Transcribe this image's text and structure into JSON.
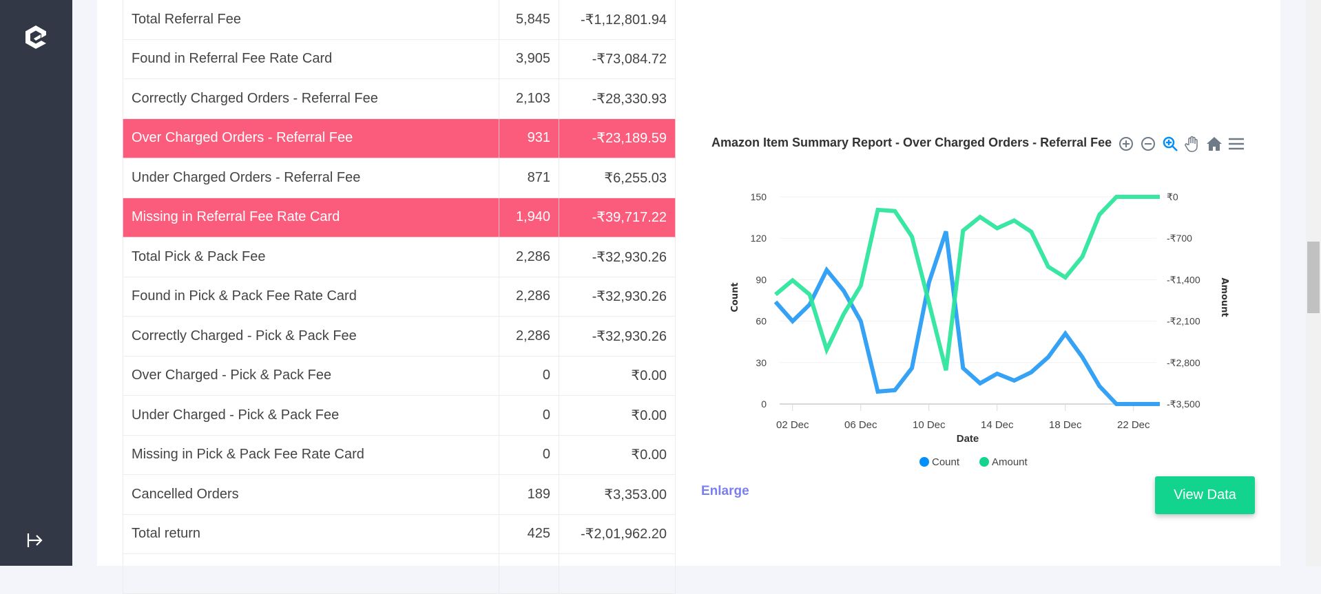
{
  "sidebar": {
    "logo": "app-logo",
    "expand_icon": "arrow-right-to-bar-icon"
  },
  "table": {
    "rows": [
      {
        "label": "Total Referral Fee",
        "count": "5,845",
        "amount": "-₹1,12,801.94",
        "highlight": false
      },
      {
        "label": "Found in Referral Fee Rate Card",
        "count": "3,905",
        "amount": "-₹73,084.72",
        "highlight": false
      },
      {
        "label": "Correctly Charged Orders - Referral Fee",
        "count": "2,103",
        "amount": "-₹28,330.93",
        "highlight": false
      },
      {
        "label": "Over Charged Orders - Referral Fee",
        "count": "931",
        "amount": "-₹23,189.59",
        "highlight": true
      },
      {
        "label": "Under Charged Orders - Referral Fee",
        "count": "871",
        "amount": "₹6,255.03",
        "highlight": false
      },
      {
        "label": "Missing in Referral Fee Rate Card",
        "count": "1,940",
        "amount": "-₹39,717.22",
        "highlight": true
      },
      {
        "label": "Total Pick & Pack Fee",
        "count": "2,286",
        "amount": "-₹32,930.26",
        "highlight": false
      },
      {
        "label": "Found in Pick & Pack Fee Rate Card",
        "count": "2,286",
        "amount": "-₹32,930.26",
        "highlight": false
      },
      {
        "label": "Correctly Charged - Pick & Pack Fee",
        "count": "2,286",
        "amount": "-₹32,930.26",
        "highlight": false
      },
      {
        "label": "Over Charged - Pick & Pack Fee",
        "count": "0",
        "amount": "₹0.00",
        "highlight": false
      },
      {
        "label": "Under Charged - Pick & Pack Fee",
        "count": "0",
        "amount": "₹0.00",
        "highlight": false
      },
      {
        "label": "Missing in Pick & Pack Fee Rate Card",
        "count": "0",
        "amount": "₹0.00",
        "highlight": false
      },
      {
        "label": "Cancelled Orders",
        "count": "189",
        "amount": "₹3,353.00",
        "highlight": false
      },
      {
        "label": "Total return",
        "count": "425",
        "amount": "-₹2,01,962.20",
        "highlight": false
      },
      {
        "label": "",
        "count": "",
        "amount": "",
        "highlight": false
      }
    ],
    "highlight_color": "#fb5c7c"
  },
  "chart_toolbar": [
    "zoom-in-icon",
    "zoom-out-icon",
    "selection-zoom-icon",
    "pan-hand-icon",
    "reset-home-icon",
    "menu-icon"
  ],
  "chart_data": {
    "type": "line",
    "title": "Amazon Item Summary Report - Over Charged Orders - Referral Fee",
    "xlabel": "Date",
    "ylabel": "Count",
    "y2label": "Amount",
    "x": [
      "01 Dec",
      "02 Dec",
      "03 Dec",
      "04 Dec",
      "05 Dec",
      "06 Dec",
      "07 Dec",
      "08 Dec",
      "09 Dec",
      "10 Dec",
      "11 Dec",
      "12 Dec",
      "13 Dec",
      "14 Dec",
      "15 Dec",
      "16 Dec",
      "17 Dec",
      "18 Dec",
      "19 Dec",
      "20 Dec",
      "21 Dec",
      "22 Dec",
      "23 Dec",
      "24 Dec"
    ],
    "xticks": [
      "02 Dec",
      "06 Dec",
      "10 Dec",
      "14 Dec",
      "18 Dec",
      "22 Dec"
    ],
    "yticks": [
      "0",
      "30",
      "60",
      "90",
      "120",
      "150"
    ],
    "y2ticks": [
      "-₹3,500",
      "-₹2,800",
      "-₹2,100",
      "-₹1,400",
      "-₹700",
      "₹0"
    ],
    "ylim": [
      0,
      150
    ],
    "y2lim": [
      -3500,
      0
    ],
    "grid": true,
    "legend": "bottom",
    "series": [
      {
        "name": "Count",
        "axis": "left",
        "color": "#2a9df4",
        "values": [
          74,
          60,
          72,
          97,
          82,
          60,
          9,
          10,
          26,
          88,
          125,
          26,
          15,
          22,
          17,
          23,
          34,
          51,
          34,
          13,
          0,
          0,
          0,
          0
        ]
      },
      {
        "name": "Amount",
        "axis": "right",
        "color": "#2ee59d",
        "values": [
          -1650,
          -1410,
          -1650,
          -2580,
          -1980,
          -1500,
          -220,
          -240,
          -670,
          -1790,
          -2930,
          -570,
          -340,
          -530,
          -400,
          -590,
          -1180,
          -1360,
          -1010,
          -300,
          0,
          0,
          0,
          0
        ]
      }
    ]
  },
  "actions": {
    "enlarge": "Enlarge",
    "view_data": "View Data"
  }
}
